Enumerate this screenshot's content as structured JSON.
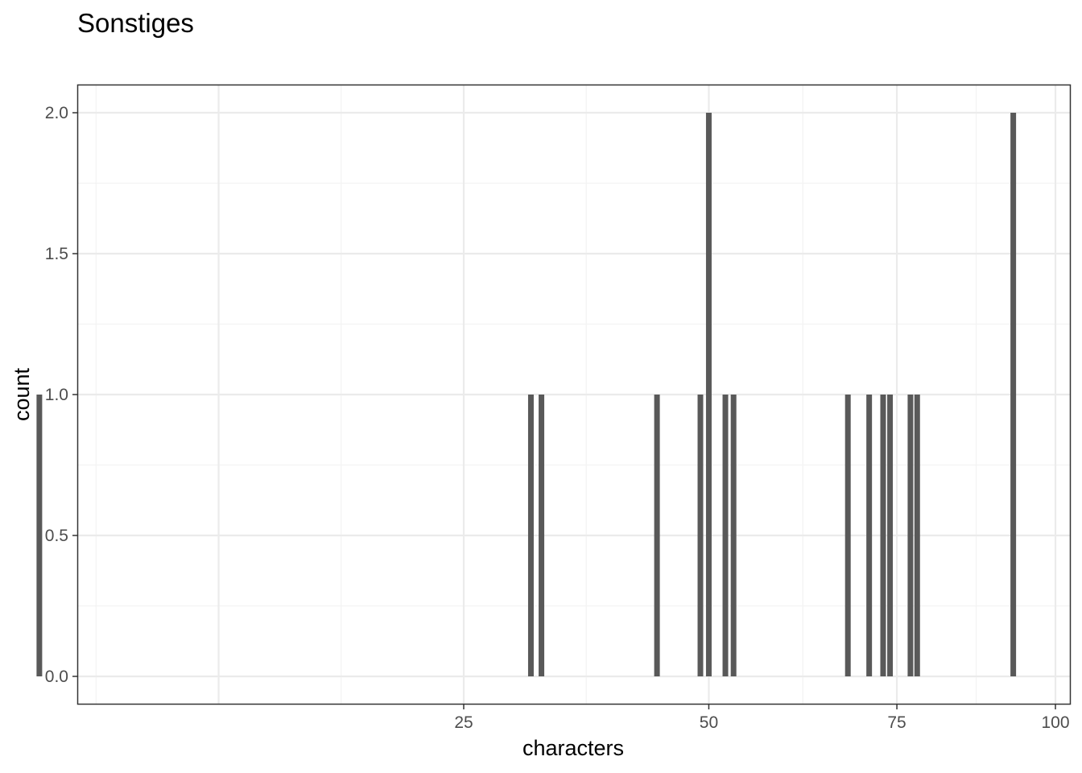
{
  "chart_data": {
    "type": "bar",
    "title": "Sonstiges",
    "xlabel": "characters",
    "ylabel": "count",
    "x_scale": "sqrt",
    "xlim": [
      0,
      100
    ],
    "ylim": [
      0,
      2
    ],
    "x_ticks": [
      25,
      50,
      75,
      100
    ],
    "x_tick_labels": [
      "25",
      "50",
      "75",
      "100"
    ],
    "y_ticks": [
      0.0,
      0.5,
      1.0,
      1.5,
      2.0
    ],
    "y_tick_labels": [
      "0.0",
      "0.5",
      "1.0",
      "1.5",
      "2.0"
    ],
    "grid": true,
    "categories": [
      "2",
      "31",
      "32",
      "44",
      "49",
      "50",
      "52",
      "53",
      "68",
      "71",
      "73",
      "74",
      "77",
      "78",
      "93"
    ],
    "values": [
      1,
      1,
      1,
      1,
      1,
      2,
      1,
      1,
      1,
      1,
      1,
      1,
      1,
      1,
      2
    ]
  },
  "colors": {
    "bar": "#595959",
    "panel_border": "#333333",
    "grid_major": "#ebebeb",
    "grid_minor": "#f3f3f3",
    "tick_text": "#4d4d4d"
  }
}
